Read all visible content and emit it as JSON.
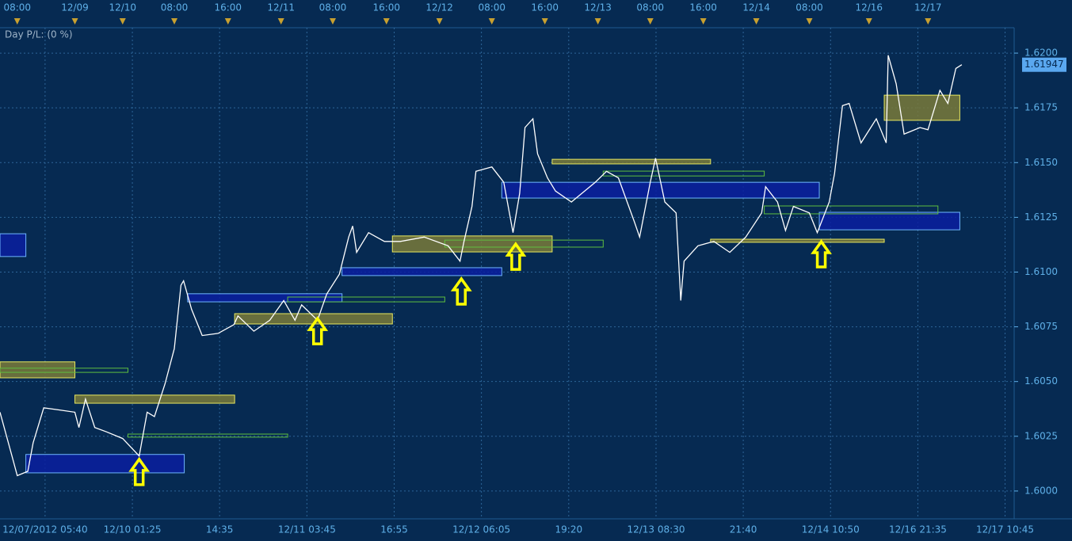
{
  "chart_data": {
    "type": "line",
    "subtitle": "Day P/L: (0 %)",
    "x": [
      -6.8,
      -5.0,
      -4.2,
      -2.6,
      -1.8,
      -0.2,
      2.2,
      4.5,
      5.1,
      6.1,
      7.5,
      9.3,
      11.7,
      14.2,
      15.4,
      16.5,
      18.1,
      19.5,
      20.5,
      20.9,
      22.1,
      23.7,
      26.1,
      28.5,
      29.1,
      31.5,
      33.9,
      36.0,
      37.7,
      38.7,
      41.1,
      42.5,
      44.4,
      45.8,
      46.4,
      47.0,
      48.8,
      51.2,
      53.6,
      57.2,
      60.8,
      62.6,
      63.2,
      64.4,
      65.0,
      67.4,
      69.2,
      70.6,
      71.6,
      72.4,
      73.6,
      74.3,
      75.8,
      77.0,
      79.4,
      83.0,
      84.7,
      86.5,
      88.9,
      89.7,
      91.3,
      92.1,
      93.5,
      95.2,
      95.9,
      96.4,
      98.5,
      100.9,
      103.3,
      105.7,
      108.1,
      108.7,
      110.5,
      111.7,
      112.9,
      115.3,
      116.5,
      118.3,
      119.1,
      120.3,
      121.3,
      123.1,
      125.4,
      126.9,
      127.2,
      128.4,
      129.6,
      132.0,
      133.2,
      135.0,
      136.2,
      137.4,
      138.3
    ],
    "series": [
      {
        "color": "#ffffff",
        "values": [
          1.6036,
          1.6016,
          1.6007,
          1.6009,
          1.6022,
          1.6038,
          1.6037,
          1.6036,
          1.6029,
          1.6042,
          1.6029,
          1.6027,
          1.6024,
          1.6016,
          1.6036,
          1.6034,
          1.6049,
          1.6065,
          1.6094,
          1.6096,
          1.6083,
          1.6071,
          1.6072,
          1.6076,
          1.608,
          1.6073,
          1.6078,
          1.6087,
          1.6078,
          1.6085,
          1.6078,
          1.609,
          1.6099,
          1.6116,
          1.6121,
          1.6109,
          1.6118,
          1.6114,
          1.6114,
          1.6116,
          1.6112,
          1.6105,
          1.6114,
          1.613,
          1.6146,
          1.6148,
          1.6141,
          1.6118,
          1.6136,
          1.6166,
          1.617,
          1.6154,
          1.6143,
          1.6137,
          1.6132,
          1.6141,
          1.6146,
          1.6143,
          1.6123,
          1.6116,
          1.6141,
          1.6152,
          1.6132,
          1.6127,
          1.6087,
          1.6105,
          1.6112,
          1.6114,
          1.6109,
          1.6116,
          1.6127,
          1.6139,
          1.6132,
          1.6119,
          1.613,
          1.6127,
          1.6118,
          1.6132,
          1.6145,
          1.6176,
          1.6177,
          1.6159,
          1.617,
          1.6159,
          1.6199,
          1.6186,
          1.6163,
          1.6166,
          1.6165,
          1.6183,
          1.6177,
          1.6193,
          1.61947
        ]
      }
    ],
    "xlim": [
      -6.8,
      146.2
    ],
    "xticks": [
      {
        "value": 0,
        "label": "12/07/2012 05:40"
      },
      {
        "value": 13.17,
        "label": "12/10 01:25"
      },
      {
        "value": 26.33,
        "label": "14:35"
      },
      {
        "value": 39.5,
        "label": "12/11 03:45"
      },
      {
        "value": 52.67,
        "label": "16:55"
      },
      {
        "value": 65.83,
        "label": "12/12 06:05"
      },
      {
        "value": 79,
        "label": "19:20"
      },
      {
        "value": 92.17,
        "label": "12/13 08:30"
      },
      {
        "value": 105.33,
        "label": "21:40"
      },
      {
        "value": 118.5,
        "label": "12/14 10:50"
      },
      {
        "value": 131.67,
        "label": "12/16 21:35"
      },
      {
        "value": 144.83,
        "label": "12/17 10:45"
      }
    ],
    "x2ticks": [
      {
        "value": -4.2,
        "label": "08:00"
      },
      {
        "value": 4.5,
        "label": "12/09"
      },
      {
        "value": 11.7,
        "label": "12/10"
      },
      {
        "value": 19.5,
        "label": "08:00"
      },
      {
        "value": 27.6,
        "label": "16:00"
      },
      {
        "value": 35.6,
        "label": "12/11"
      },
      {
        "value": 43.4,
        "label": "08:00"
      },
      {
        "value": 51.5,
        "label": "16:00"
      },
      {
        "value": 59.5,
        "label": "12/12"
      },
      {
        "value": 67.4,
        "label": "08:00"
      },
      {
        "value": 75.4,
        "label": "16:00"
      },
      {
        "value": 83.4,
        "label": "12/13"
      },
      {
        "value": 91.3,
        "label": "08:00"
      },
      {
        "value": 99.3,
        "label": "16:00"
      },
      {
        "value": 107.3,
        "label": "12/14"
      },
      {
        "value": 115.3,
        "label": "08:00"
      },
      {
        "value": 124.3,
        "label": "12/16"
      },
      {
        "value": 133.2,
        "label": "12/17"
      }
    ],
    "ylim": [
      1.59873,
      1.62116
    ],
    "yticks": [
      {
        "value": 1.6,
        "label": "1.6000"
      },
      1.6025,
      {
        "value": 1.605,
        "label": "1.6050"
      },
      1.6075,
      {
        "value": 1.61,
        "label": "1.6100"
      },
      1.6125,
      {
        "value": 1.615,
        "label": "1.6150"
      },
      1.6175,
      {
        "value": 1.62,
        "label": "1.6200"
      }
    ],
    "grid": true,
    "zones": [
      {
        "x": [
          -6.8,
          -2.9
        ],
        "y": [
          1.61071,
          1.61175
        ],
        "fill": "#0a1fa0",
        "stroke": "#6fb6ff"
      },
      {
        "x": [
          -2.9,
          21.0
        ],
        "y": [
          1.60083,
          1.60167
        ],
        "fill": "#0a1fa0",
        "stroke": "#6fb6ff"
      },
      {
        "x": [
          21.5,
          44.8
        ],
        "y": [
          1.60864,
          1.60901
        ],
        "fill": "#0a1fa0",
        "stroke": "#6fb6ff"
      },
      {
        "x": [
          44.8,
          68.9
        ],
        "y": [
          1.60984,
          1.6102
        ],
        "fill": "#0a1fa0",
        "stroke": "#6fb6ff"
      },
      {
        "x": [
          68.9,
          116.8
        ],
        "y": [
          1.61338,
          1.6141
        ],
        "fill": "#0a1fa0",
        "stroke": "#6fb6ff"
      },
      {
        "x": [
          116.8,
          138.0
        ],
        "y": [
          1.61193,
          1.61273
        ],
        "fill": "#0a1fa0",
        "stroke": "#6fb6ff"
      },
      {
        "x": [
          -6.8,
          4.5
        ],
        "y": [
          1.60517,
          1.6059
        ],
        "fill": "#7a7a3a",
        "stroke": "#e8e860"
      },
      {
        "x": [
          4.5,
          28.6
        ],
        "y": [
          1.60401,
          1.60438
        ],
        "fill": "#7a7a3a",
        "stroke": "#e8e860"
      },
      {
        "x": [
          28.6,
          52.4
        ],
        "y": [
          1.60763,
          1.6081
        ],
        "fill": "#7a7a3a",
        "stroke": "#e8e860"
      },
      {
        "x": [
          52.4,
          76.5
        ],
        "y": [
          1.61092,
          1.61165
        ],
        "fill": "#7a7a3a",
        "stroke": "#e8e860"
      },
      {
        "x": [
          76.5,
          100.4
        ],
        "y": [
          1.61494,
          1.61515
        ],
        "fill": "#7a7a3a",
        "stroke": "#e8e860"
      },
      {
        "x": [
          100.4,
          126.6
        ],
        "y": [
          1.61136,
          1.6115
        ],
        "fill": "#7a7a3a",
        "stroke": "#e8e860"
      },
      {
        "x": [
          126.6,
          138.0
        ],
        "y": [
          1.61693,
          1.61808
        ],
        "fill": "#7a7a3a",
        "stroke": "#e8e860"
      },
      {
        "x": [
          -6.8,
          12.5
        ],
        "y": [
          1.60542,
          1.60561
        ],
        "fill": "none",
        "stroke": "#5fbf3f"
      },
      {
        "x": [
          12.5,
          36.6
        ],
        "y": [
          1.60246,
          1.6026
        ],
        "fill": "none",
        "stroke": "#5fbf3f"
      },
      {
        "x": [
          36.6,
          60.3
        ],
        "y": [
          1.60864,
          1.60886
        ],
        "fill": "none",
        "stroke": "#5fbf3f"
      },
      {
        "x": [
          60.3,
          84.2
        ],
        "y": [
          1.61114,
          1.61146
        ],
        "fill": "none",
        "stroke": "#5fbf3f"
      },
      {
        "x": [
          84.2,
          108.5
        ],
        "y": [
          1.61439,
          1.61461
        ],
        "fill": "none",
        "stroke": "#5fbf3f"
      },
      {
        "x": [
          108.5,
          134.7
        ],
        "y": [
          1.61266,
          1.61302
        ],
        "fill": "none",
        "stroke": "#5fbf3f"
      }
    ],
    "signals": {
      "color": "#ffff00",
      "x": [
        14.2,
        41.1,
        62.8,
        71.0,
        117.1
      ],
      "y": [
        1.60145,
        1.60788,
        1.60969,
        1.61128,
        1.61139
      ]
    }
  }
}
